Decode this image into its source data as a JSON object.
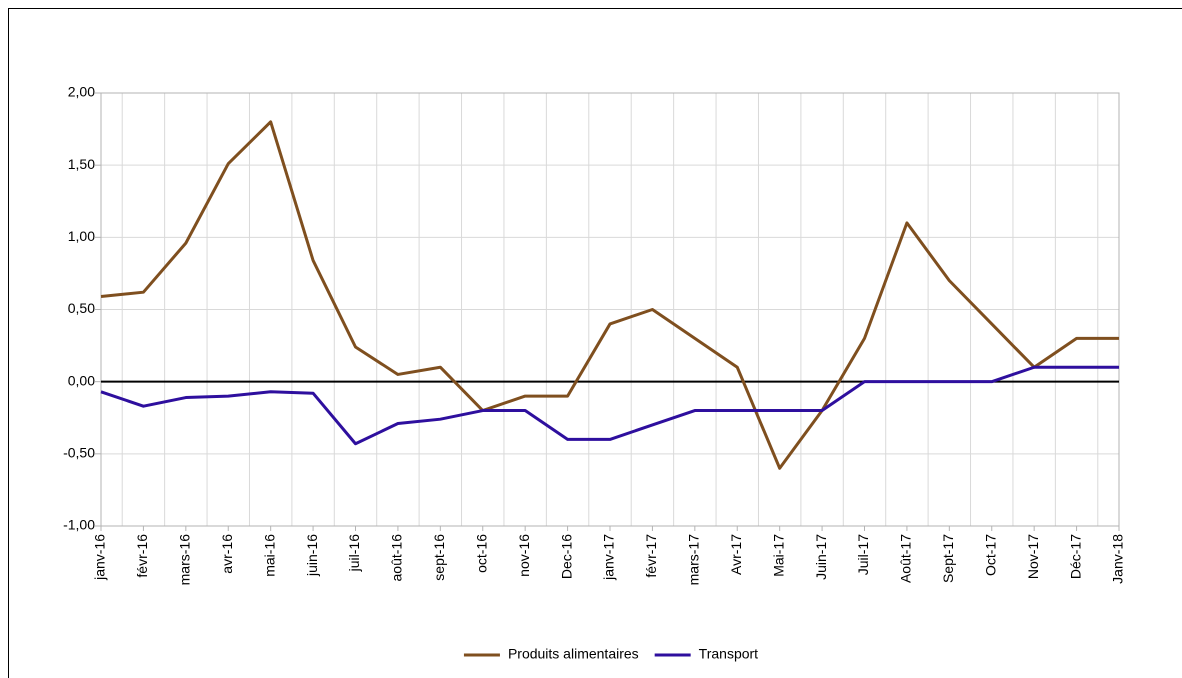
{
  "chart_data": {
    "type": "line",
    "categories": [
      "janv-16",
      "févr-16",
      "mars-16",
      "avr-16",
      "mai-16",
      "juin-16",
      "juil-16",
      "août-16",
      "sept-16",
      "oct-16",
      "nov-16",
      "Dec-16",
      "janv-17",
      "févr-17",
      "mars-17",
      "Avr-17",
      "Mai-17",
      "Juin-17",
      "Juil-17",
      "Août-17",
      "Sept-17",
      "Oct-17",
      "Nov-17",
      "Déc-17",
      "Janv-18"
    ],
    "series": [
      {
        "name": "Produits alimentaires",
        "color": "#7f4f1f",
        "values": [
          0.59,
          0.62,
          0.96,
          1.51,
          1.8,
          0.84,
          0.24,
          0.05,
          0.1,
          -0.2,
          -0.1,
          -0.1,
          0.4,
          0.5,
          0.3,
          0.1,
          -0.6,
          -0.2,
          0.3,
          1.1,
          0.7,
          0.4,
          0.1,
          0.3,
          0.3
        ]
      },
      {
        "name": "Transport",
        "color": "#2e0f9e",
        "values": [
          -0.07,
          -0.17,
          -0.11,
          -0.1,
          -0.07,
          -0.08,
          -0.43,
          -0.29,
          -0.26,
          -0.2,
          -0.2,
          -0.4,
          -0.4,
          -0.3,
          -0.2,
          -0.2,
          -0.2,
          -0.2,
          0.0,
          0.0,
          0.0,
          0.0,
          0.1,
          0.1,
          0.1
        ]
      }
    ],
    "ylim": [
      -1,
      2
    ],
    "yticks": [
      {
        "value": -1,
        "label": "-1,00"
      },
      {
        "value": -0.5,
        "label": "-0,50"
      },
      {
        "value": 0,
        "label": "0,00"
      },
      {
        "value": 0.5,
        "label": "0,50"
      },
      {
        "value": 1,
        "label": "1,00"
      },
      {
        "value": 1.5,
        "label": "1,50"
      },
      {
        "value": 2,
        "label": "2,00"
      }
    ],
    "grid": true,
    "legend": "bottom"
  }
}
